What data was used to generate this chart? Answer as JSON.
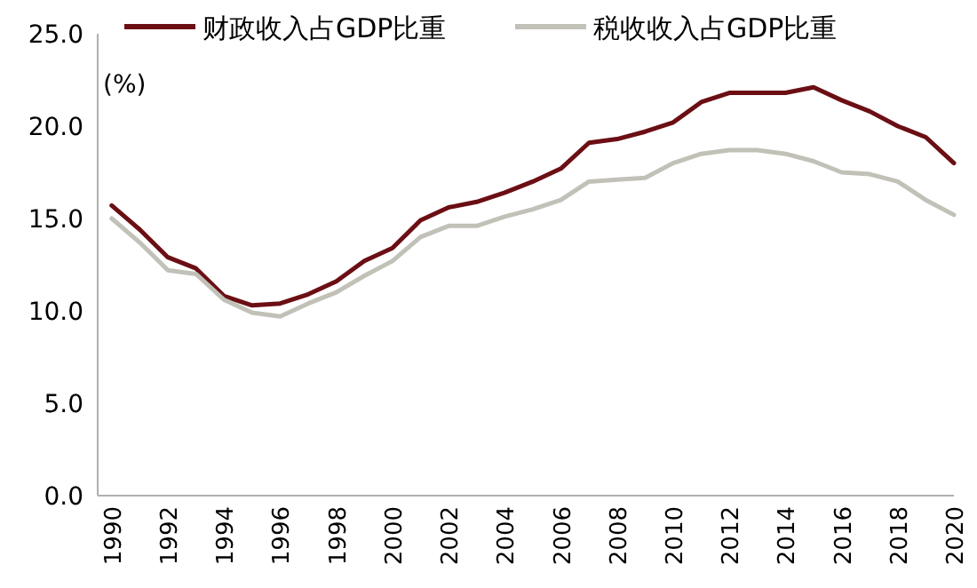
{
  "chart_data": {
    "type": "line",
    "ylabel": "(%)",
    "x": [
      1990,
      1991,
      1992,
      1993,
      1994,
      1995,
      1996,
      1997,
      1998,
      1999,
      2000,
      2001,
      2002,
      2003,
      2004,
      2005,
      2006,
      2007,
      2008,
      2009,
      2010,
      2011,
      2012,
      2013,
      2014,
      2015,
      2016,
      2017,
      2018,
      2019,
      2020
    ],
    "series": [
      {
        "name": "财政收入占GDP比重",
        "color": "#6b0f14",
        "values": [
          15.7,
          14.4,
          12.9,
          12.3,
          10.8,
          10.3,
          10.4,
          10.9,
          11.6,
          12.7,
          13.4,
          14.9,
          15.6,
          15.9,
          16.4,
          17.0,
          17.7,
          19.1,
          19.3,
          19.7,
          20.2,
          21.3,
          21.8,
          21.8,
          21.8,
          22.1,
          21.4,
          20.8,
          20.0,
          19.4,
          18.0
        ]
      },
      {
        "name": "税收收入占GDP比重",
        "color": "#c2c1b8",
        "values": [
          15.0,
          13.7,
          12.2,
          12.0,
          10.6,
          9.9,
          9.7,
          10.4,
          11.0,
          11.9,
          12.7,
          14.0,
          14.6,
          14.6,
          15.1,
          15.5,
          16.0,
          17.0,
          17.1,
          17.2,
          18.0,
          18.5,
          18.7,
          18.7,
          18.5,
          18.1,
          17.5,
          17.4,
          17.0,
          16.0,
          15.2
        ]
      }
    ],
    "xlim": [
      1989.5,
      2020
    ],
    "xticks": [
      1990,
      1992,
      1994,
      1996,
      1998,
      2000,
      2002,
      2004,
      2006,
      2008,
      2010,
      2012,
      2014,
      2016,
      2018,
      2020
    ],
    "ylim": [
      0,
      25
    ],
    "yticks": [
      {
        "value": 0,
        "label": "0.0"
      },
      {
        "value": 5,
        "label": "5.0"
      },
      {
        "value": 10,
        "label": "10.0"
      },
      {
        "value": 15,
        "label": "15.0"
      },
      {
        "value": 20,
        "label": "20.0"
      },
      {
        "value": 25,
        "label": "25.0"
      }
    ],
    "grid": false,
    "legend": "top",
    "marker": "none",
    "line_style": "solid"
  }
}
